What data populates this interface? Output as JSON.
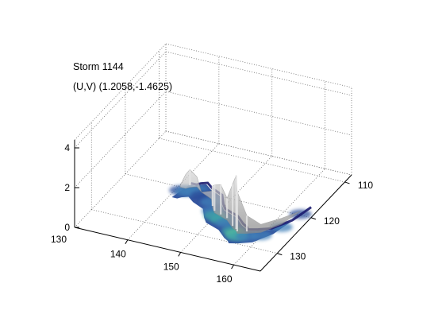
{
  "chart_data": {
    "type": "surface3d",
    "title": "Storm 1144",
    "subtitle": "(U,V) (1.2058,-1.4625)",
    "xlabel": "",
    "ylabel": "",
    "zlabel": "",
    "x_ticks": [
      140,
      150,
      160
    ],
    "x_start_label": "130",
    "y_ticks": [
      110,
      120,
      130
    ],
    "z_ticks": [
      0,
      2,
      4
    ],
    "xlim": [
      130,
      165
    ],
    "ylim": [
      108,
      135
    ],
    "zlim": [
      0,
      4.4
    ],
    "grid": true,
    "colormap": [
      "#1a1a6e",
      "#2b4d9a",
      "#3f7fb8",
      "#3fa6a8",
      "#5cc29a"
    ],
    "surface_color": "#a8a8a8",
    "storm_footprint": [
      {
        "x": 141,
        "y": 121,
        "z": 0.3
      },
      {
        "x": 142,
        "y": 121,
        "z": 0.9
      },
      {
        "x": 142.5,
        "y": 120.5,
        "z": 1.1
      },
      {
        "x": 143.5,
        "y": 120,
        "z": 0.7
      },
      {
        "x": 145,
        "y": 121,
        "z": 0.2
      },
      {
        "x": 147.5,
        "y": 122,
        "z": 0.6
      },
      {
        "x": 149,
        "y": 124,
        "z": 1.3
      },
      {
        "x": 150,
        "y": 125,
        "z": 1.6
      },
      {
        "x": 151.5,
        "y": 125.5,
        "z": 1.8
      },
      {
        "x": 153,
        "y": 126,
        "z": 1.3
      },
      {
        "x": 155,
        "y": 127.5,
        "z": 2.4
      },
      {
        "x": 156,
        "y": 128,
        "z": 3.0
      },
      {
        "x": 156.5,
        "y": 128.5,
        "z": 2.3
      },
      {
        "x": 158,
        "y": 128,
        "z": 1.1
      },
      {
        "x": 160,
        "y": 127,
        "z": 0.6
      },
      {
        "x": 162,
        "y": 124,
        "z": 0.5
      },
      {
        "x": 163,
        "y": 120,
        "z": 0.2
      }
    ]
  }
}
